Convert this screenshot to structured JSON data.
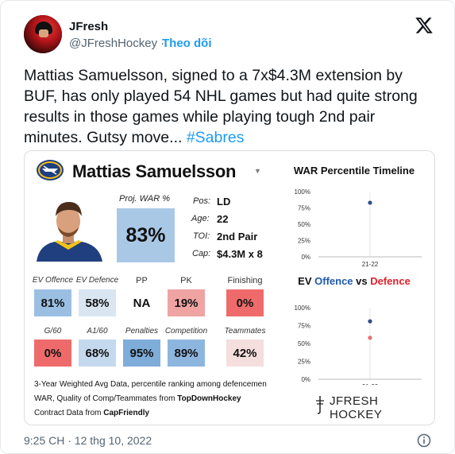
{
  "author": {
    "name": "JFresh",
    "handle": "@JFreshHockey",
    "separator": "·",
    "follow_label": "Theo dõi"
  },
  "tweet": {
    "text": "Mattias Samuelsson, signed to a 7x$4.3M extension by BUF, has only played 54 NHL games but had quite strong results in those games while playing tough 2nd pair minutes. Gutsy move... ",
    "hashtag": "#Sabres",
    "time": "9:25 CH",
    "date": "12 thg 10, 2022"
  },
  "card": {
    "player_name": "Mattias Samuelsson",
    "proj_war_label": "Proj. WAR %",
    "proj_war_value": "83%",
    "info": [
      {
        "label": "Pos:",
        "value": "LD"
      },
      {
        "label": "Age:",
        "value": "22"
      },
      {
        "label": "TOI:",
        "value": "2nd Pair"
      },
      {
        "label": "Cap:",
        "value": "$4.3M x 8"
      }
    ],
    "stats_row1": [
      {
        "label": "EV Offence",
        "value": "81%",
        "color": "#9bbfe3"
      },
      {
        "label": "EV Defence",
        "value": "58%",
        "color": "#d9e6f2"
      },
      {
        "label": "PP",
        "value": "NA",
        "color": "#ffffff"
      },
      {
        "label": "PK",
        "value": "19%",
        "color": "#f0a3a3"
      },
      {
        "label": "Finishing",
        "value": "0%",
        "color": "#ef6b6b"
      }
    ],
    "stats_row2": [
      {
        "label": "G/60",
        "value": "0%",
        "color": "#ef6b6b"
      },
      {
        "label": "A1/60",
        "value": "68%",
        "color": "#c4d9ee"
      },
      {
        "label": "Penalties",
        "value": "95%",
        "color": "#7fadd9"
      },
      {
        "label": "Competition",
        "value": "89%",
        "color": "#8db6df"
      },
      {
        "label": "Teammates",
        "value": "42%",
        "color": "#f5dede"
      }
    ],
    "footnote_line1": "3-Year Weighted Avg Data, percentile ranking among defencemen",
    "footnote_line2_prefix": "WAR, Quality of Comp/Teammates from ",
    "footnote_line2_source": "TopDownHockey",
    "footnote_line3_prefix": "Contract Data from ",
    "footnote_line3_source": "CapFriendly",
    "brand": "JFRESH HOCKEY",
    "chart1_title": "WAR Percentile Timeline",
    "chart2_title_a": "EV ",
    "chart2_title_b": "Offence",
    "chart2_title_c": " vs ",
    "chart2_title_d": "Defence"
  },
  "chart_data": [
    {
      "type": "scatter",
      "title": "WAR Percentile Timeline",
      "categories": [
        "21-22"
      ],
      "yticks": [
        "100%",
        "75%",
        "50%",
        "25%",
        "0%"
      ],
      "ylim": [
        0,
        100
      ],
      "series": [
        {
          "values": [
            83
          ],
          "color": "#2f4e8c"
        }
      ]
    },
    {
      "type": "scatter",
      "title": "EV Offence vs Defence",
      "categories": [
        "21-22"
      ],
      "yticks": [
        "100%",
        "75%",
        "50%",
        "25%",
        "0%"
      ],
      "ylim": [
        0,
        100
      ],
      "series": [
        {
          "name": "Offence",
          "values": [
            81
          ],
          "color": "#2f4e8c"
        },
        {
          "name": "Defence",
          "values": [
            58
          ],
          "color": "#ef6b6b"
        }
      ]
    }
  ],
  "colors": {
    "offence": "#1f59b0",
    "defence": "#e0212d",
    "link": "#1d9bf0"
  }
}
